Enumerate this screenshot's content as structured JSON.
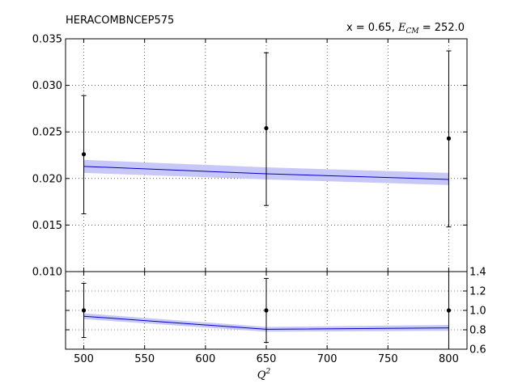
{
  "chart_data": [
    {
      "type": "scatter",
      "title": "HERACOMBNCEP575",
      "subtitle": "x = 0.65, E_CM = 252.0",
      "subtitle_prefix": "x = 0.65, ",
      "subtitle_symbol": "E",
      "subtitle_subscript": "CM",
      "subtitle_suffix": " = 252.0",
      "xlim": [
        485,
        815
      ],
      "ylim": [
        0.01,
        0.035
      ],
      "grid": true,
      "y_tick_labels": [
        "0.010",
        "0.015",
        "0.020",
        "0.025",
        "0.030",
        "0.035"
      ],
      "series": [
        {
          "kind": "data-points-with-errorbars",
          "x": [
            500,
            650,
            800
          ],
          "y": [
            0.0226,
            0.0254,
            0.0243
          ],
          "yerr_low": [
            0.0162,
            0.0171,
            0.0148
          ],
          "yerr_high": [
            0.0289,
            0.0335,
            0.0337
          ]
        },
        {
          "kind": "theory-line-with-band",
          "x": [
            500,
            650,
            800
          ],
          "y": [
            0.0213,
            0.0205,
            0.0199
          ],
          "band_low": [
            0.0206,
            0.0199,
            0.0193
          ],
          "band_high": [
            0.022,
            0.0212,
            0.0206
          ]
        }
      ],
      "colors": {
        "points": "#000000",
        "line": "#0000cc",
        "band": "#c8c8f8"
      }
    },
    {
      "type": "scatter",
      "xlabel": "Q",
      "xlabel_superscript": "2",
      "xlim": [
        485,
        815
      ],
      "ylim": [
        0.6,
        1.4
      ],
      "grid": true,
      "x_tick_labels": [
        "500",
        "550",
        "600",
        "650",
        "700",
        "750",
        "800"
      ],
      "y_tick_labels": [
        "0.6",
        "0.8",
        "1.0",
        "1.2",
        "1.4"
      ],
      "y_axis_side": "right",
      "series": [
        {
          "kind": "ratio-points-with-errorbars",
          "x": [
            500,
            650,
            800
          ],
          "y": [
            1.0,
            1.0,
            1.0
          ],
          "yerr_low": [
            0.72,
            0.67,
            0.6
          ],
          "yerr_high": [
            1.28,
            1.33,
            1.4
          ]
        },
        {
          "kind": "ratio-line-with-band",
          "x": [
            500,
            650,
            800
          ],
          "y": [
            0.94,
            0.805,
            0.82
          ],
          "band_low": [
            0.91,
            0.78,
            0.79
          ],
          "band_high": [
            0.97,
            0.83,
            0.85
          ]
        }
      ]
    }
  ]
}
